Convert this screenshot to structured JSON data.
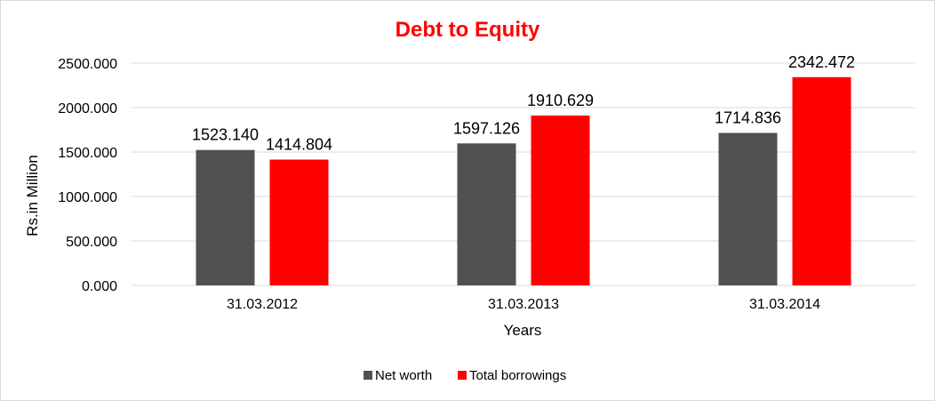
{
  "chart_data": {
    "type": "bar",
    "title": "Debt to Equity",
    "xlabel": "Years",
    "ylabel": "Rs.in Million",
    "categories": [
      "31.03.2012",
      "31.03.2013",
      "31.03.2014"
    ],
    "series": [
      {
        "name": "Net worth",
        "color": "#505050",
        "values": [
          1523.14,
          1597.126,
          1714.836
        ],
        "labels": [
          "1523.140",
          "1597.126",
          "1714.836"
        ]
      },
      {
        "name": "Total borrowings",
        "color": "#ff0000",
        "values": [
          1414.804,
          1910.629,
          2342.472
        ],
        "labels": [
          "1414.804",
          "1910.629",
          "2342.472"
        ]
      }
    ],
    "yticks": [
      "0.000",
      "500.000",
      "1000.000",
      "1500.000",
      "2000.000",
      "2500.000"
    ],
    "ylim": [
      0,
      2500
    ],
    "grid": true,
    "legend_position": "bottom"
  }
}
